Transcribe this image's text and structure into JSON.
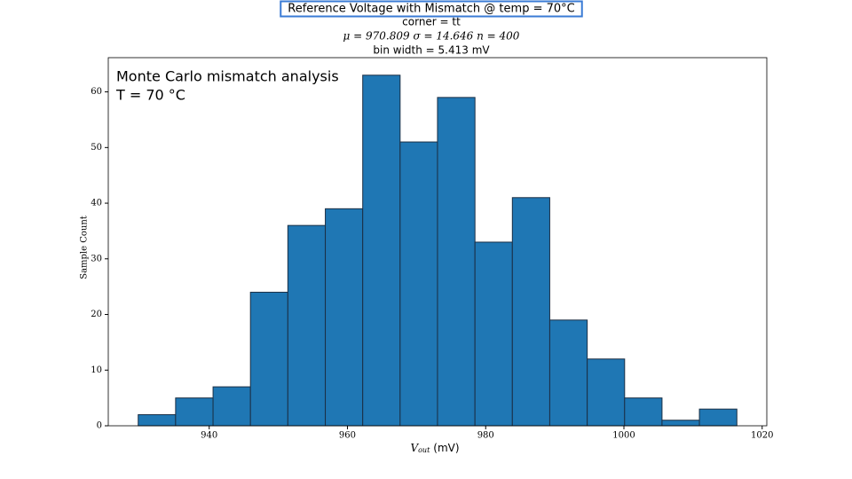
{
  "chart_data": {
    "type": "histogram",
    "title": "Reference Voltage with Mismatch @ temp = 70°C",
    "subtitle": [
      "corner = tt",
      "μ = 970.809 σ = 14.646 n = 400",
      "bin width = 5.413 mV"
    ],
    "annotations": [
      "Monte Carlo mismatch analysis",
      "T = 70 °C"
    ],
    "xlabel": {
      "symbol": "V",
      "subscript": "out",
      "unit": "(mV)"
    },
    "ylabel": "Sample Count",
    "bins": [
      929.73,
      935.14,
      940.56,
      945.97,
      951.38,
      956.8,
      962.21,
      967.62,
      973.03,
      978.45,
      983.86,
      989.27,
      994.69,
      1000.1,
      1005.51,
      1010.92,
      1016.34
    ],
    "values": [
      2,
      5,
      7,
      24,
      36,
      39,
      63,
      51,
      59,
      33,
      41,
      19,
      12,
      5,
      1,
      3
    ],
    "color": "#1f77b4",
    "edgecolor": "#1b2f45",
    "xlim": [
      925.4,
      1020.67
    ],
    "ylim": [
      0,
      66.15
    ],
    "xticks": [
      940,
      960,
      980,
      1000,
      1020
    ],
    "yticks": [
      0,
      10,
      20,
      30,
      40,
      50,
      60
    ],
    "grid": false
  }
}
